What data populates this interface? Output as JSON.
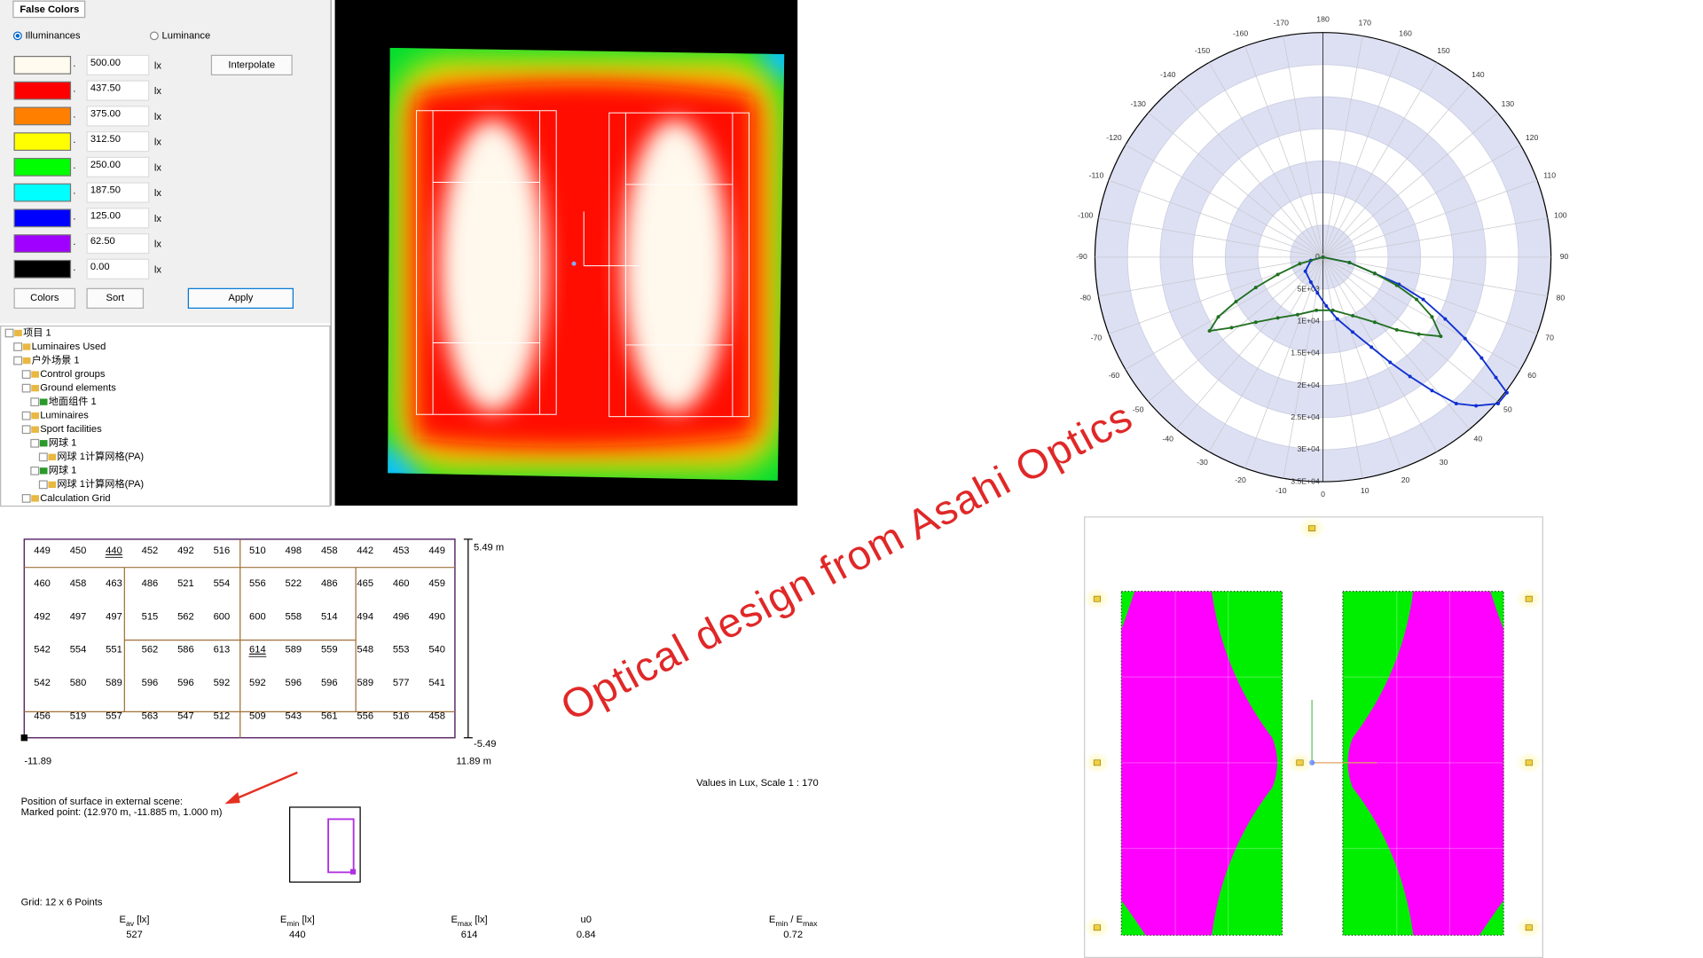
{
  "panel": {
    "tab": "False Colors",
    "radios": [
      "Illuminances",
      "Luminance"
    ],
    "levels": [
      {
        "value": "500.00",
        "color": "#fffbee"
      },
      {
        "value": "437.50",
        "color": "#ff0000"
      },
      {
        "value": "375.00",
        "color": "#ff8000"
      },
      {
        "value": "312.50",
        "color": "#ffff00"
      },
      {
        "value": "250.00",
        "color": "#00ff00"
      },
      {
        "value": "187.50",
        "color": "#00ffff"
      },
      {
        "value": "125.00",
        "color": "#0000ff"
      },
      {
        "value": "62.50",
        "color": "#a000ff"
      },
      {
        "value": "0.00",
        "color": "#000000"
      }
    ],
    "unit": "lx",
    "buttons": {
      "interpolate": "Interpolate",
      "colors": "Colors",
      "sort": "Sort",
      "apply": "Apply"
    }
  },
  "tree": [
    {
      "label": "项目 1",
      "level": 0
    },
    {
      "label": "Luminaires Used",
      "level": 1
    },
    {
      "label": "户外场景 1",
      "level": 1
    },
    {
      "label": "Control groups",
      "level": 2
    },
    {
      "label": "Ground elements",
      "level": 2
    },
    {
      "label": "地面组件 1",
      "level": 3
    },
    {
      "label": "Luminaires",
      "level": 2
    },
    {
      "label": "Sport facilities",
      "level": 2
    },
    {
      "label": "网球 1",
      "level": 3
    },
    {
      "label": "网球 1计算网格(PA)",
      "level": 4
    },
    {
      "label": "网球 1",
      "level": 3
    },
    {
      "label": "网球 1计算网格(PA)",
      "level": 4
    },
    {
      "label": "Calculation Grid",
      "level": 2
    }
  ],
  "polar": {
    "angle_labels": [
      180,
      170,
      160,
      150,
      140,
      130,
      120,
      110,
      100,
      90,
      80,
      70,
      60,
      50,
      40,
      30,
      20,
      10,
      0,
      -10,
      -20,
      -30,
      -40,
      -50,
      -60,
      -70,
      -80,
      -90,
      -100,
      -110,
      -120,
      -130,
      -140,
      -150,
      -160,
      -170
    ],
    "radial_labels": [
      "0",
      "5E+03",
      "1E+04",
      "1.5E+04",
      "2E+04",
      "2.5E+04",
      "3E+04",
      "3.5E+04"
    ]
  },
  "grid_table": {
    "rows": [
      [
        449,
        450,
        440,
        452,
        492,
        516,
        510,
        498,
        458,
        442,
        453,
        449
      ],
      [
        460,
        458,
        463,
        486,
        521,
        554,
        556,
        522,
        486,
        465,
        460,
        459
      ],
      [
        492,
        497,
        497,
        515,
        562,
        600,
        600,
        558,
        514,
        494,
        496,
        490
      ],
      [
        542,
        554,
        551,
        562,
        586,
        613,
        614,
        589,
        559,
        548,
        553,
        540
      ],
      [
        542,
        580,
        589,
        596,
        596,
        592,
        592,
        596,
        596,
        589,
        577,
        541
      ],
      [
        456,
        519,
        557,
        563,
        547,
        512,
        509,
        543,
        561,
        556,
        516,
        458
      ]
    ],
    "top": "5.49 m",
    "bottom": "-5.49",
    "left": "-11.89",
    "right": "11.89 m"
  },
  "info": {
    "scale": "Values in Lux, Scale 1 : 170",
    "position_title": "Position of surface in external scene:",
    "marked_point": "Marked point: (12.970 m, -11.885 m, 1.000 m)",
    "grid": "Grid: 12 x 6 Points"
  },
  "stats": [
    {
      "header": [
        {
          "text": "E"
        },
        {
          "sub": "av"
        },
        {
          "text": " [lx]"
        }
      ],
      "value": 527
    },
    {
      "header": [
        {
          "text": "E"
        },
        {
          "sub": "min"
        },
        {
          "text": " [lx]"
        }
      ],
      "value": 440
    },
    {
      "header": [
        {
          "text": "E"
        },
        {
          "sub": "max"
        },
        {
          "text": " [lx]"
        }
      ],
      "value": 614
    },
    {
      "header": [
        {
          "text": "u0"
        }
      ],
      "value": 0.84
    },
    {
      "header": [
        {
          "text": "E"
        },
        {
          "sub": "min"
        },
        {
          "text": " / E"
        },
        {
          "sub": "max"
        }
      ],
      "value": 0.72
    }
  ],
  "watermark": "Optical design from Asahi Optics"
}
